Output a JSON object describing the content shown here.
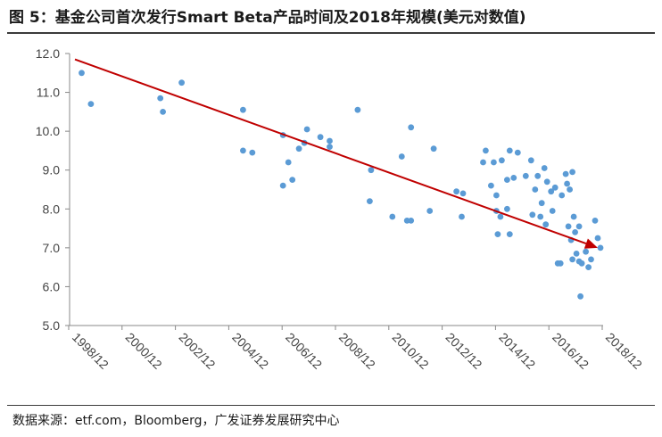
{
  "header": {
    "title": "图 5：基金公司首次发行Smart Beta产品时间及2018年规模(美元对数值)"
  },
  "footer": {
    "source": "数据来源：etf.com，Bloomberg，广发证券发展研究中心"
  },
  "chart_data": {
    "type": "scatter",
    "title": "",
    "xlabel": "",
    "ylabel": "",
    "ylim": [
      5.0,
      12.0
    ],
    "yticks": [
      "5.0",
      "6.0",
      "7.0",
      "8.0",
      "9.0",
      "10.0",
      "11.0",
      "12.0"
    ],
    "xticks": [
      "1998/12",
      "2000/12",
      "2002/12",
      "2004/12",
      "2006/12",
      "2008/12",
      "2010/12",
      "2012/12",
      "2014/12",
      "2016/12",
      "2018/12"
    ],
    "xlim": [
      1998.95,
      2018.95
    ],
    "grid": false,
    "point_color": "#5b9bd5",
    "trend_color": "#c00000",
    "trend": {
      "x": [
        1999.15,
        2018.75
      ],
      "y": [
        11.85,
        7.0
      ]
    },
    "points": [
      {
        "x": 1999.4,
        "y": 11.5
      },
      {
        "x": 1999.75,
        "y": 10.7
      },
      {
        "x": 2002.35,
        "y": 10.85
      },
      {
        "x": 2002.45,
        "y": 10.5
      },
      {
        "x": 2003.15,
        "y": 11.25
      },
      {
        "x": 2005.45,
        "y": 10.55
      },
      {
        "x": 2005.45,
        "y": 9.5
      },
      {
        "x": 2005.8,
        "y": 9.45
      },
      {
        "x": 2006.95,
        "y": 9.9
      },
      {
        "x": 2006.95,
        "y": 8.6
      },
      {
        "x": 2007.15,
        "y": 9.2
      },
      {
        "x": 2007.3,
        "y": 8.75
      },
      {
        "x": 2007.55,
        "y": 9.55
      },
      {
        "x": 2007.75,
        "y": 9.7
      },
      {
        "x": 2007.85,
        "y": 10.05
      },
      {
        "x": 2008.35,
        "y": 9.85
      },
      {
        "x": 2008.7,
        "y": 9.75
      },
      {
        "x": 2008.7,
        "y": 9.6
      },
      {
        "x": 2009.75,
        "y": 10.55
      },
      {
        "x": 2010.25,
        "y": 9.0
      },
      {
        "x": 2010.2,
        "y": 8.2
      },
      {
        "x": 2011.05,
        "y": 7.8
      },
      {
        "x": 2011.4,
        "y": 9.35
      },
      {
        "x": 2011.6,
        "y": 7.7
      },
      {
        "x": 2011.75,
        "y": 7.7
      },
      {
        "x": 2011.75,
        "y": 10.1
      },
      {
        "x": 2012.45,
        "y": 7.95
      },
      {
        "x": 2012.6,
        "y": 9.55
      },
      {
        "x": 2013.45,
        "y": 8.45
      },
      {
        "x": 2013.7,
        "y": 8.4
      },
      {
        "x": 2013.65,
        "y": 7.8
      },
      {
        "x": 2014.45,
        "y": 9.2
      },
      {
        "x": 2014.55,
        "y": 9.5
      },
      {
        "x": 2014.75,
        "y": 8.6
      },
      {
        "x": 2014.85,
        "y": 9.2
      },
      {
        "x": 2014.95,
        "y": 8.35
      },
      {
        "x": 2014.95,
        "y": 7.95
      },
      {
        "x": 2015.0,
        "y": 7.35
      },
      {
        "x": 2015.1,
        "y": 7.8
      },
      {
        "x": 2015.15,
        "y": 9.25
      },
      {
        "x": 2015.35,
        "y": 8.75
      },
      {
        "x": 2015.35,
        "y": 8.0
      },
      {
        "x": 2015.45,
        "y": 7.35
      },
      {
        "x": 2015.45,
        "y": 9.5
      },
      {
        "x": 2015.6,
        "y": 8.8
      },
      {
        "x": 2015.75,
        "y": 9.45
      },
      {
        "x": 2016.05,
        "y": 8.85
      },
      {
        "x": 2016.25,
        "y": 9.25
      },
      {
        "x": 2016.3,
        "y": 7.85
      },
      {
        "x": 2016.4,
        "y": 8.5
      },
      {
        "x": 2016.5,
        "y": 8.85
      },
      {
        "x": 2016.6,
        "y": 7.8
      },
      {
        "x": 2016.65,
        "y": 8.15
      },
      {
        "x": 2016.75,
        "y": 9.05
      },
      {
        "x": 2016.8,
        "y": 7.6
      },
      {
        "x": 2016.85,
        "y": 8.7
      },
      {
        "x": 2017.0,
        "y": 8.45
      },
      {
        "x": 2017.05,
        "y": 7.95
      },
      {
        "x": 2017.15,
        "y": 8.55
      },
      {
        "x": 2017.25,
        "y": 6.6
      },
      {
        "x": 2017.35,
        "y": 6.6
      },
      {
        "x": 2017.4,
        "y": 8.35
      },
      {
        "x": 2017.55,
        "y": 8.9
      },
      {
        "x": 2017.65,
        "y": 7.55
      },
      {
        "x": 2017.6,
        "y": 8.65
      },
      {
        "x": 2017.7,
        "y": 8.5
      },
      {
        "x": 2017.75,
        "y": 7.2
      },
      {
        "x": 2017.8,
        "y": 6.7
      },
      {
        "x": 2017.8,
        "y": 8.95
      },
      {
        "x": 2017.85,
        "y": 7.8
      },
      {
        "x": 2017.9,
        "y": 7.4
      },
      {
        "x": 2017.95,
        "y": 6.85
      },
      {
        "x": 2018.05,
        "y": 7.55
      },
      {
        "x": 2018.05,
        "y": 6.65
      },
      {
        "x": 2018.1,
        "y": 5.75
      },
      {
        "x": 2018.15,
        "y": 6.6
      },
      {
        "x": 2018.3,
        "y": 6.9
      },
      {
        "x": 2018.4,
        "y": 6.5
      },
      {
        "x": 2018.5,
        "y": 6.7
      },
      {
        "x": 2018.65,
        "y": 7.7
      },
      {
        "x": 2018.75,
        "y": 7.25
      },
      {
        "x": 2018.85,
        "y": 7.0
      }
    ]
  }
}
